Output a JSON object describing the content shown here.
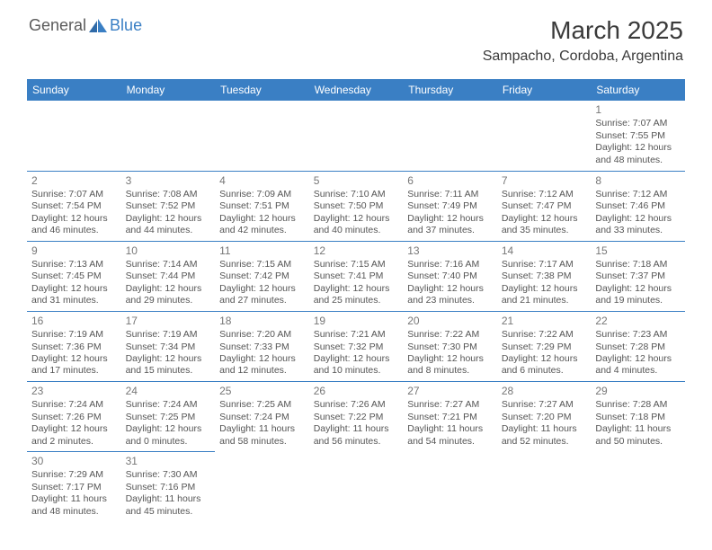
{
  "logo": {
    "general": "General",
    "blue": "Blue"
  },
  "title": "March 2025",
  "location": "Sampacho, Cordoba, Argentina",
  "colors": {
    "header_bg": "#3a7fc4",
    "header_text": "#ffffff",
    "border": "#3a7fc4",
    "body_text": "#555555",
    "daynum": "#777777",
    "page_bg": "#ffffff",
    "title_text": "#3a3a3a"
  },
  "calendar": {
    "type": "table",
    "day_headers": [
      "Sunday",
      "Monday",
      "Tuesday",
      "Wednesday",
      "Thursday",
      "Friday",
      "Saturday"
    ],
    "weeks": [
      [
        null,
        null,
        null,
        null,
        null,
        null,
        {
          "n": "1",
          "sunrise": "Sunrise: 7:07 AM",
          "sunset": "Sunset: 7:55 PM",
          "daylight": "Daylight: 12 hours and 48 minutes."
        }
      ],
      [
        {
          "n": "2",
          "sunrise": "Sunrise: 7:07 AM",
          "sunset": "Sunset: 7:54 PM",
          "daylight": "Daylight: 12 hours and 46 minutes."
        },
        {
          "n": "3",
          "sunrise": "Sunrise: 7:08 AM",
          "sunset": "Sunset: 7:52 PM",
          "daylight": "Daylight: 12 hours and 44 minutes."
        },
        {
          "n": "4",
          "sunrise": "Sunrise: 7:09 AM",
          "sunset": "Sunset: 7:51 PM",
          "daylight": "Daylight: 12 hours and 42 minutes."
        },
        {
          "n": "5",
          "sunrise": "Sunrise: 7:10 AM",
          "sunset": "Sunset: 7:50 PM",
          "daylight": "Daylight: 12 hours and 40 minutes."
        },
        {
          "n": "6",
          "sunrise": "Sunrise: 7:11 AM",
          "sunset": "Sunset: 7:49 PM",
          "daylight": "Daylight: 12 hours and 37 minutes."
        },
        {
          "n": "7",
          "sunrise": "Sunrise: 7:12 AM",
          "sunset": "Sunset: 7:47 PM",
          "daylight": "Daylight: 12 hours and 35 minutes."
        },
        {
          "n": "8",
          "sunrise": "Sunrise: 7:12 AM",
          "sunset": "Sunset: 7:46 PM",
          "daylight": "Daylight: 12 hours and 33 minutes."
        }
      ],
      [
        {
          "n": "9",
          "sunrise": "Sunrise: 7:13 AM",
          "sunset": "Sunset: 7:45 PM",
          "daylight": "Daylight: 12 hours and 31 minutes."
        },
        {
          "n": "10",
          "sunrise": "Sunrise: 7:14 AM",
          "sunset": "Sunset: 7:44 PM",
          "daylight": "Daylight: 12 hours and 29 minutes."
        },
        {
          "n": "11",
          "sunrise": "Sunrise: 7:15 AM",
          "sunset": "Sunset: 7:42 PM",
          "daylight": "Daylight: 12 hours and 27 minutes."
        },
        {
          "n": "12",
          "sunrise": "Sunrise: 7:15 AM",
          "sunset": "Sunset: 7:41 PM",
          "daylight": "Daylight: 12 hours and 25 minutes."
        },
        {
          "n": "13",
          "sunrise": "Sunrise: 7:16 AM",
          "sunset": "Sunset: 7:40 PM",
          "daylight": "Daylight: 12 hours and 23 minutes."
        },
        {
          "n": "14",
          "sunrise": "Sunrise: 7:17 AM",
          "sunset": "Sunset: 7:38 PM",
          "daylight": "Daylight: 12 hours and 21 minutes."
        },
        {
          "n": "15",
          "sunrise": "Sunrise: 7:18 AM",
          "sunset": "Sunset: 7:37 PM",
          "daylight": "Daylight: 12 hours and 19 minutes."
        }
      ],
      [
        {
          "n": "16",
          "sunrise": "Sunrise: 7:19 AM",
          "sunset": "Sunset: 7:36 PM",
          "daylight": "Daylight: 12 hours and 17 minutes."
        },
        {
          "n": "17",
          "sunrise": "Sunrise: 7:19 AM",
          "sunset": "Sunset: 7:34 PM",
          "daylight": "Daylight: 12 hours and 15 minutes."
        },
        {
          "n": "18",
          "sunrise": "Sunrise: 7:20 AM",
          "sunset": "Sunset: 7:33 PM",
          "daylight": "Daylight: 12 hours and 12 minutes."
        },
        {
          "n": "19",
          "sunrise": "Sunrise: 7:21 AM",
          "sunset": "Sunset: 7:32 PM",
          "daylight": "Daylight: 12 hours and 10 minutes."
        },
        {
          "n": "20",
          "sunrise": "Sunrise: 7:22 AM",
          "sunset": "Sunset: 7:30 PM",
          "daylight": "Daylight: 12 hours and 8 minutes."
        },
        {
          "n": "21",
          "sunrise": "Sunrise: 7:22 AM",
          "sunset": "Sunset: 7:29 PM",
          "daylight": "Daylight: 12 hours and 6 minutes."
        },
        {
          "n": "22",
          "sunrise": "Sunrise: 7:23 AM",
          "sunset": "Sunset: 7:28 PM",
          "daylight": "Daylight: 12 hours and 4 minutes."
        }
      ],
      [
        {
          "n": "23",
          "sunrise": "Sunrise: 7:24 AM",
          "sunset": "Sunset: 7:26 PM",
          "daylight": "Daylight: 12 hours and 2 minutes."
        },
        {
          "n": "24",
          "sunrise": "Sunrise: 7:24 AM",
          "sunset": "Sunset: 7:25 PM",
          "daylight": "Daylight: 12 hours and 0 minutes."
        },
        {
          "n": "25",
          "sunrise": "Sunrise: 7:25 AM",
          "sunset": "Sunset: 7:24 PM",
          "daylight": "Daylight: 11 hours and 58 minutes."
        },
        {
          "n": "26",
          "sunrise": "Sunrise: 7:26 AM",
          "sunset": "Sunset: 7:22 PM",
          "daylight": "Daylight: 11 hours and 56 minutes."
        },
        {
          "n": "27",
          "sunrise": "Sunrise: 7:27 AM",
          "sunset": "Sunset: 7:21 PM",
          "daylight": "Daylight: 11 hours and 54 minutes."
        },
        {
          "n": "28",
          "sunrise": "Sunrise: 7:27 AM",
          "sunset": "Sunset: 7:20 PM",
          "daylight": "Daylight: 11 hours and 52 minutes."
        },
        {
          "n": "29",
          "sunrise": "Sunrise: 7:28 AM",
          "sunset": "Sunset: 7:18 PM",
          "daylight": "Daylight: 11 hours and 50 minutes."
        }
      ],
      [
        {
          "n": "30",
          "sunrise": "Sunrise: 7:29 AM",
          "sunset": "Sunset: 7:17 PM",
          "daylight": "Daylight: 11 hours and 48 minutes."
        },
        {
          "n": "31",
          "sunrise": "Sunrise: 7:30 AM",
          "sunset": "Sunset: 7:16 PM",
          "daylight": "Daylight: 11 hours and 45 minutes."
        },
        null,
        null,
        null,
        null,
        null
      ]
    ]
  }
}
